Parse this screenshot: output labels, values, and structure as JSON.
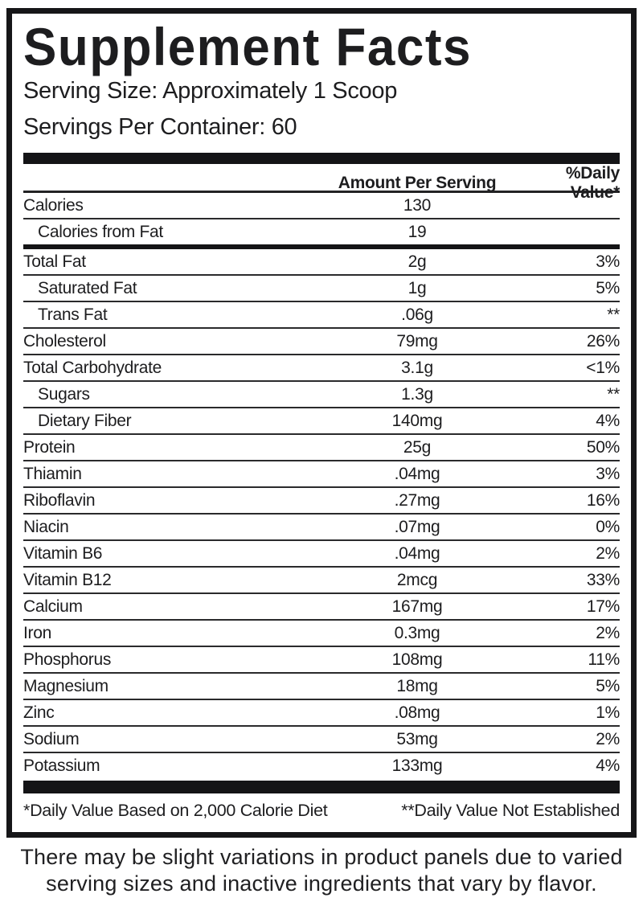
{
  "label": {
    "title": "Supplement Facts",
    "serving_size": "Serving Size: Approximately 1 Scoop",
    "servings_per_container": "Servings Per Container: 60",
    "columns": {
      "amount_header": "Amount Per Serving",
      "dv_header": "%Daily Value*"
    },
    "rows": [
      {
        "label": "Calories",
        "amount": "130",
        "dv": "",
        "indent": false,
        "rule_after": "thin"
      },
      {
        "label": "Calories from Fat",
        "amount": "19",
        "dv": "",
        "indent": true,
        "rule_after": "heavy"
      },
      {
        "label": "Total Fat",
        "amount": "2g",
        "dv": "3%",
        "indent": false,
        "rule_after": "thin"
      },
      {
        "label": "Saturated Fat",
        "amount": "1g",
        "dv": "5%",
        "indent": true,
        "rule_after": "thin"
      },
      {
        "label": "Trans Fat",
        "amount": ".06g",
        "dv": "**",
        "indent": true,
        "rule_after": "thin"
      },
      {
        "label": "Cholesterol",
        "amount": "79mg",
        "dv": "26%",
        "indent": false,
        "rule_after": "thin"
      },
      {
        "label": "Total Carbohydrate",
        "amount": "3.1g",
        "dv": "<1%",
        "indent": false,
        "rule_after": "thin"
      },
      {
        "label": "Sugars",
        "amount": "1.3g",
        "dv": "**",
        "indent": true,
        "rule_after": "thin"
      },
      {
        "label": "Dietary Fiber",
        "amount": "140mg",
        "dv": "4%",
        "indent": true,
        "rule_after": "thin"
      },
      {
        "label": "Protein",
        "amount": "25g",
        "dv": "50%",
        "indent": false,
        "rule_after": "thin"
      },
      {
        "label": "Thiamin",
        "amount": ".04mg",
        "dv": "3%",
        "indent": false,
        "rule_after": "thin"
      },
      {
        "label": "Riboflavin",
        "amount": ".27mg",
        "dv": "16%",
        "indent": false,
        "rule_after": "thin"
      },
      {
        "label": "Niacin",
        "amount": ".07mg",
        "dv": "0%",
        "indent": false,
        "rule_after": "thin"
      },
      {
        "label": "Vitamin B6",
        "amount": ".04mg",
        "dv": "2%",
        "indent": false,
        "rule_after": "thin"
      },
      {
        "label": "Vitamin B12",
        "amount": "2mcg",
        "dv": "33%",
        "indent": false,
        "rule_after": "thin"
      },
      {
        "label": "Calcium",
        "amount": "167mg",
        "dv": "17%",
        "indent": false,
        "rule_after": "thin"
      },
      {
        "label": "Iron",
        "amount": "0.3mg",
        "dv": "2%",
        "indent": false,
        "rule_after": "thin"
      },
      {
        "label": "Phosphorus",
        "amount": "108mg",
        "dv": "11%",
        "indent": false,
        "rule_after": "thin"
      },
      {
        "label": "Magnesium",
        "amount": "18mg",
        "dv": "5%",
        "indent": false,
        "rule_after": "thin"
      },
      {
        "label": "Zinc",
        "amount": ".08mg",
        "dv": "1%",
        "indent": false,
        "rule_after": "thin"
      },
      {
        "label": "Sodium",
        "amount": "53mg",
        "dv": "2%",
        "indent": false,
        "rule_after": "thin"
      },
      {
        "label": "Potassium",
        "amount": "133mg",
        "dv": "4%",
        "indent": false,
        "rule_after": "none"
      }
    ],
    "footnote_left": "*Daily Value Based on 2,000 Calorie Diet",
    "footnote_right": "**Daily Value Not Established"
  },
  "disclaimer": {
    "line1": "There may be slight variations in product panels due to varied",
    "line2": "serving sizes and inactive ingredients that vary by flavor."
  },
  "colors": {
    "text": "#1d1d1f",
    "rule": "#2a2a2c",
    "heavy_rule": "#141416",
    "background": "#ffffff"
  }
}
